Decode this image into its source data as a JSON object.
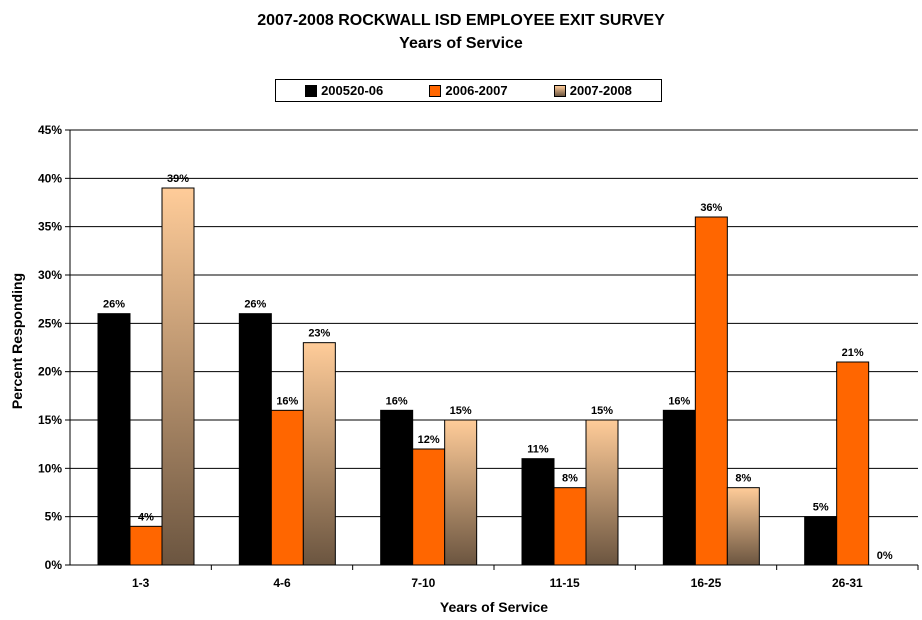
{
  "chart_data": {
    "type": "bar",
    "title": "2007-2008 ROCKWALL ISD EMPLOYEE EXIT SURVEY",
    "subtitle": "Years of Service",
    "xlabel": "Years of Service",
    "ylabel": "Percent Responding",
    "ylim": [
      0,
      45
    ],
    "ytick_step": 5,
    "ytick_labels": [
      "0%",
      "5%",
      "10%",
      "15%",
      "20%",
      "25%",
      "30%",
      "35%",
      "40%",
      "45%"
    ],
    "categories": [
      "1-3",
      "4-6",
      "7-10",
      "11-15",
      "16-25",
      "26-31"
    ],
    "series": [
      {
        "name": "200520-06",
        "values": [
          26,
          26,
          16,
          11,
          16,
          5
        ],
        "labels": [
          "26%",
          "26%",
          "16%",
          "11%",
          "16%",
          "5%"
        ],
        "color": "#000000"
      },
      {
        "name": "2006-2007",
        "values": [
          4,
          16,
          12,
          8,
          36,
          21
        ],
        "labels": [
          "4%",
          "16%",
          "12%",
          "8%",
          "36%",
          "21%"
        ],
        "color": "#FF6600"
      },
      {
        "name": "2007-2008",
        "values": [
          39,
          23,
          15,
          15,
          8,
          0
        ],
        "labels": [
          "39%",
          "23%",
          "15%",
          "15%",
          "8%",
          "0%"
        ],
        "color_top": "#FFCC99",
        "color_bottom": "#6B5540"
      }
    ],
    "grid": true,
    "legend_position": "top-center"
  }
}
